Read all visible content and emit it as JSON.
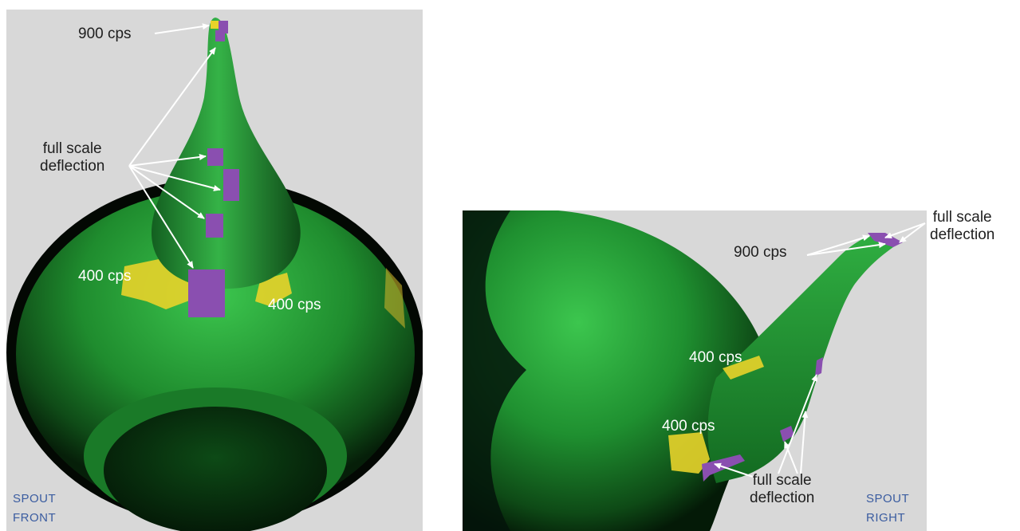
{
  "colors": {
    "background": "#d8d8d8",
    "model_green": "#1e9a32",
    "high_amplitude": "#8a4fb0",
    "mid_amplitude": "#e8d32a",
    "annotation": "#ffffff",
    "view_label": "#3a5ca0"
  },
  "front_view": {
    "label_900": "900 cps",
    "label_full_scale_line1": "full scale",
    "label_full_scale_line2": "deflection",
    "label_400_left": "400 cps",
    "label_400_right": "400 cps",
    "view_label_line1": "SPOUT",
    "view_label_line2": "FRONT"
  },
  "right_view": {
    "label_900": "900 cps",
    "label_full_scale_top_line1": "full scale",
    "label_full_scale_top_line2": "deflection",
    "label_400_upper": "400 cps",
    "label_400_lower": "400 cps",
    "label_full_scale_bottom_line1": "full scale",
    "label_full_scale_bottom_line2": "deflection",
    "view_label_line1": "SPOUT",
    "view_label_line2": "RIGHT"
  }
}
